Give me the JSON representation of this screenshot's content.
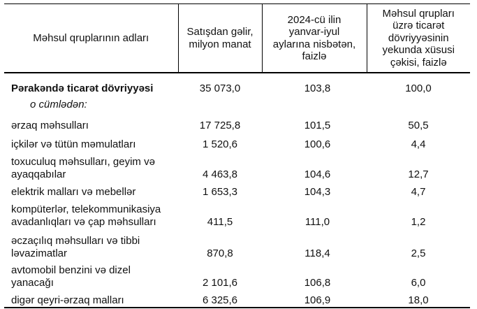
{
  "table": {
    "title_hint": "Pərakəndə ticarət dövriyyəsi üzrə məlumat cədvəli",
    "columns": [
      {
        "label": "Məhsul qruplarının adları"
      },
      {
        "label": "Satışdan gəlir,\nmilyon manat"
      },
      {
        "label": "2024-cü ilin\nyanvar-iyul\naylarına nisbətən,\nfaizlə"
      },
      {
        "label": "Məhsul qrupları\nüzrə ticarət\ndövriyyəsinin\nyekunda xüsusi\nçəkisi, faizlə"
      }
    ],
    "rows": [
      {
        "label": "Pərakəndə ticarət dövriyyəsi",
        "revenue": "35 073,0",
        "change_pct": "103,8",
        "share_pct": "100,0"
      },
      {
        "label": "o cümlədən:",
        "revenue": "",
        "change_pct": "",
        "share_pct": ""
      },
      {
        "label": "ərzaq məhsulları",
        "revenue": "17 725,8",
        "change_pct": "101,5",
        "share_pct": "50,5"
      },
      {
        "label": "içkilər və tütün məmulatları",
        "revenue": "1 520,6",
        "change_pct": "100,6",
        "share_pct": "4,4"
      },
      {
        "label": "toxuculuq məhsulları, geyim və\nayaqqabılar",
        "revenue": "4 463,8",
        "change_pct": "104,6",
        "share_pct": "12,7"
      },
      {
        "label": "elektrik malları və mebellər",
        "revenue": "1 653,3",
        "change_pct": "104,3",
        "share_pct": "4,7"
      },
      {
        "label": "kompüterlər, telekommunikasiya\navadanlıqları və çap məhsulları",
        "revenue": "411,5",
        "change_pct": "111,0",
        "share_pct": "1,2"
      },
      {
        "label": "əczaçılıq məhsulları və tibbi\nləvazimatlar",
        "revenue": "870,8",
        "change_pct": "118,4",
        "share_pct": "2,5"
      },
      {
        "label": "avtomobil benzini və dizel\nyanacağı",
        "revenue": "2 101,6",
        "change_pct": "106,8",
        "share_pct": "6,0"
      },
      {
        "label": "digər qeyri-ərzaq malları",
        "revenue": "6 325,6",
        "change_pct": "106,9",
        "share_pct": "18,0"
      }
    ]
  }
}
